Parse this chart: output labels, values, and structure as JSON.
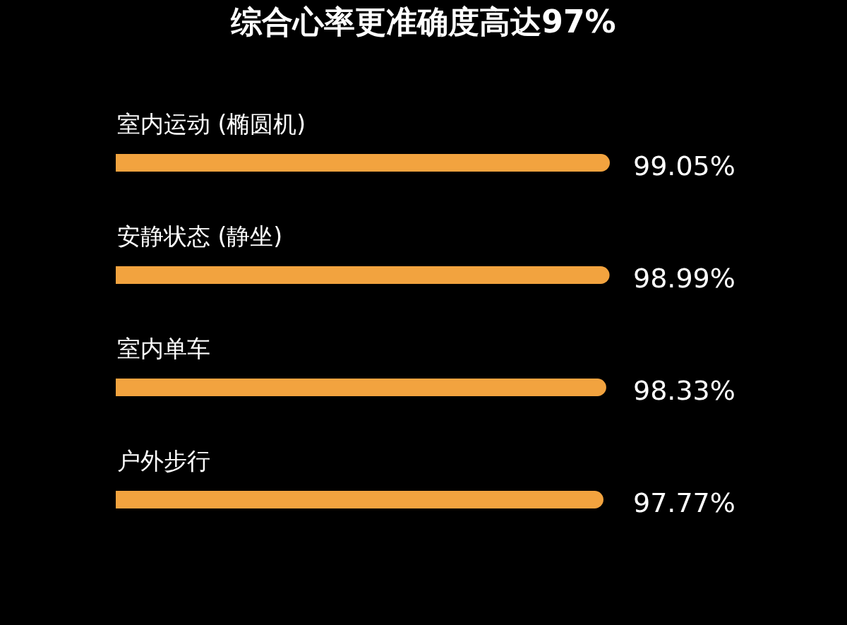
{
  "chart_data": {
    "type": "bar",
    "orientation": "horizontal",
    "title": "综合心率更准确度高达97%",
    "categories": [
      "室内运动 (椭圆机)",
      "安静状态 (静坐)",
      "室内单车",
      "户外步行"
    ],
    "values": [
      99.05,
      98.99,
      98.33,
      97.77
    ],
    "value_labels": [
      "99.05%",
      "98.99%",
      "98.33%",
      "97.77%"
    ],
    "color": "#f2a33f"
  }
}
